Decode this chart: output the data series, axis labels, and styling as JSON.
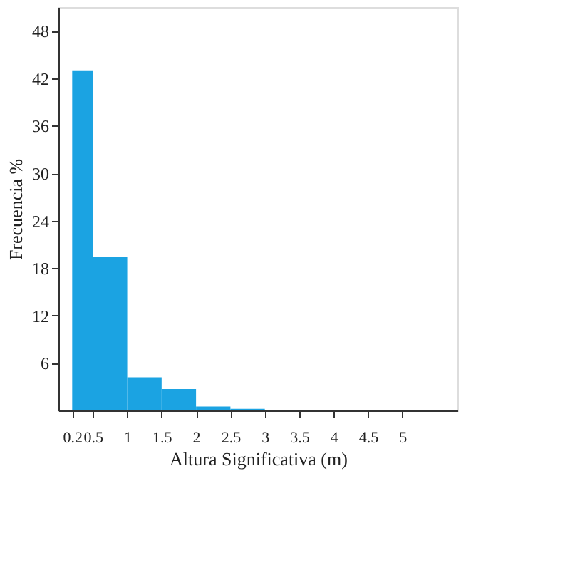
{
  "chart_data": {
    "type": "histogram",
    "xlabel": "Altura Significativa (m)",
    "ylabel": "Frecuencia %",
    "bins": [
      0.2,
      0.5,
      1,
      1.5,
      2,
      2.5,
      3,
      3.5,
      4,
      4.5,
      5,
      5.5
    ],
    "values": [
      43,
      19.4,
      4.2,
      2.7,
      0.5,
      0.2,
      0.1,
      0.1,
      0.1,
      0.1,
      0.1
    ],
    "color": "#1ba3e2",
    "xlim": [
      0,
      5.8
    ],
    "xticks": [
      0.2,
      0.5,
      1,
      1.5,
      2,
      2.5,
      3,
      3.5,
      4,
      4.5,
      5
    ],
    "ylim": [
      0,
      51
    ],
    "yticks": [
      6,
      12,
      18,
      24,
      30,
      36,
      42,
      48
    ],
    "grid": false
  }
}
